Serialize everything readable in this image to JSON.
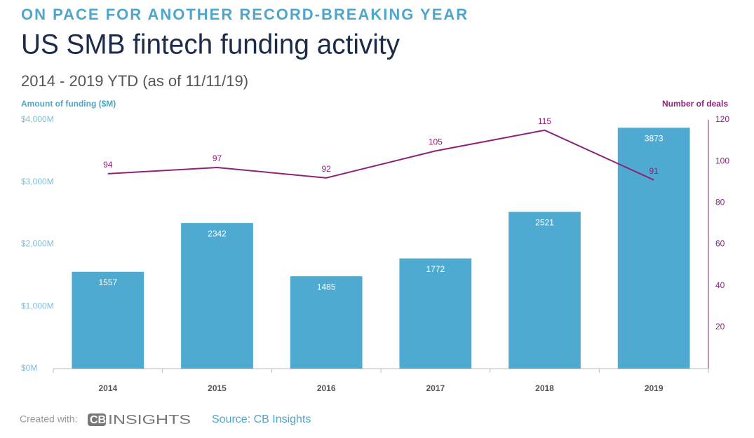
{
  "chart_data": {
    "type": "bar",
    "kicker": "ON PACE FOR ANOTHER RECORD-BREAKING YEAR",
    "title": "US SMB fintech funding activity",
    "subtitle": "2014 - 2019 YTD (as of 11/11/19)",
    "ylabel": "Amount of funding ($M)",
    "y2label": "Number of deals",
    "categories": [
      "2014",
      "2015",
      "2016",
      "2017",
      "2018",
      "2019"
    ],
    "series": [
      {
        "type": "bar",
        "axis": "y",
        "color": "#4eaad1",
        "values": [
          1557,
          2342,
          1485,
          1772,
          2521,
          3873
        ]
      },
      {
        "type": "line",
        "axis": "y2",
        "color": "#8e2278",
        "values": [
          94,
          97,
          92,
          105,
          115,
          91
        ]
      }
    ],
    "ylim": [
      0,
      4000
    ],
    "yticks": [
      {
        "value": 0,
        "label": "$0M"
      },
      {
        "value": 1000,
        "label": "$1,000M"
      },
      {
        "value": 2000,
        "label": "$2,000M"
      },
      {
        "value": 3000,
        "label": "$3,000M"
      },
      {
        "value": 4000,
        "label": "$4,000M"
      }
    ],
    "y2lim": [
      0,
      120
    ],
    "y2ticks": [
      20,
      40,
      60,
      80,
      100,
      120
    ],
    "grid": false
  },
  "footer": {
    "created_with": "Created with:",
    "logo_bold": "CB",
    "logo_rest": "INSIGHTS",
    "source": "Source: CB Insights"
  }
}
